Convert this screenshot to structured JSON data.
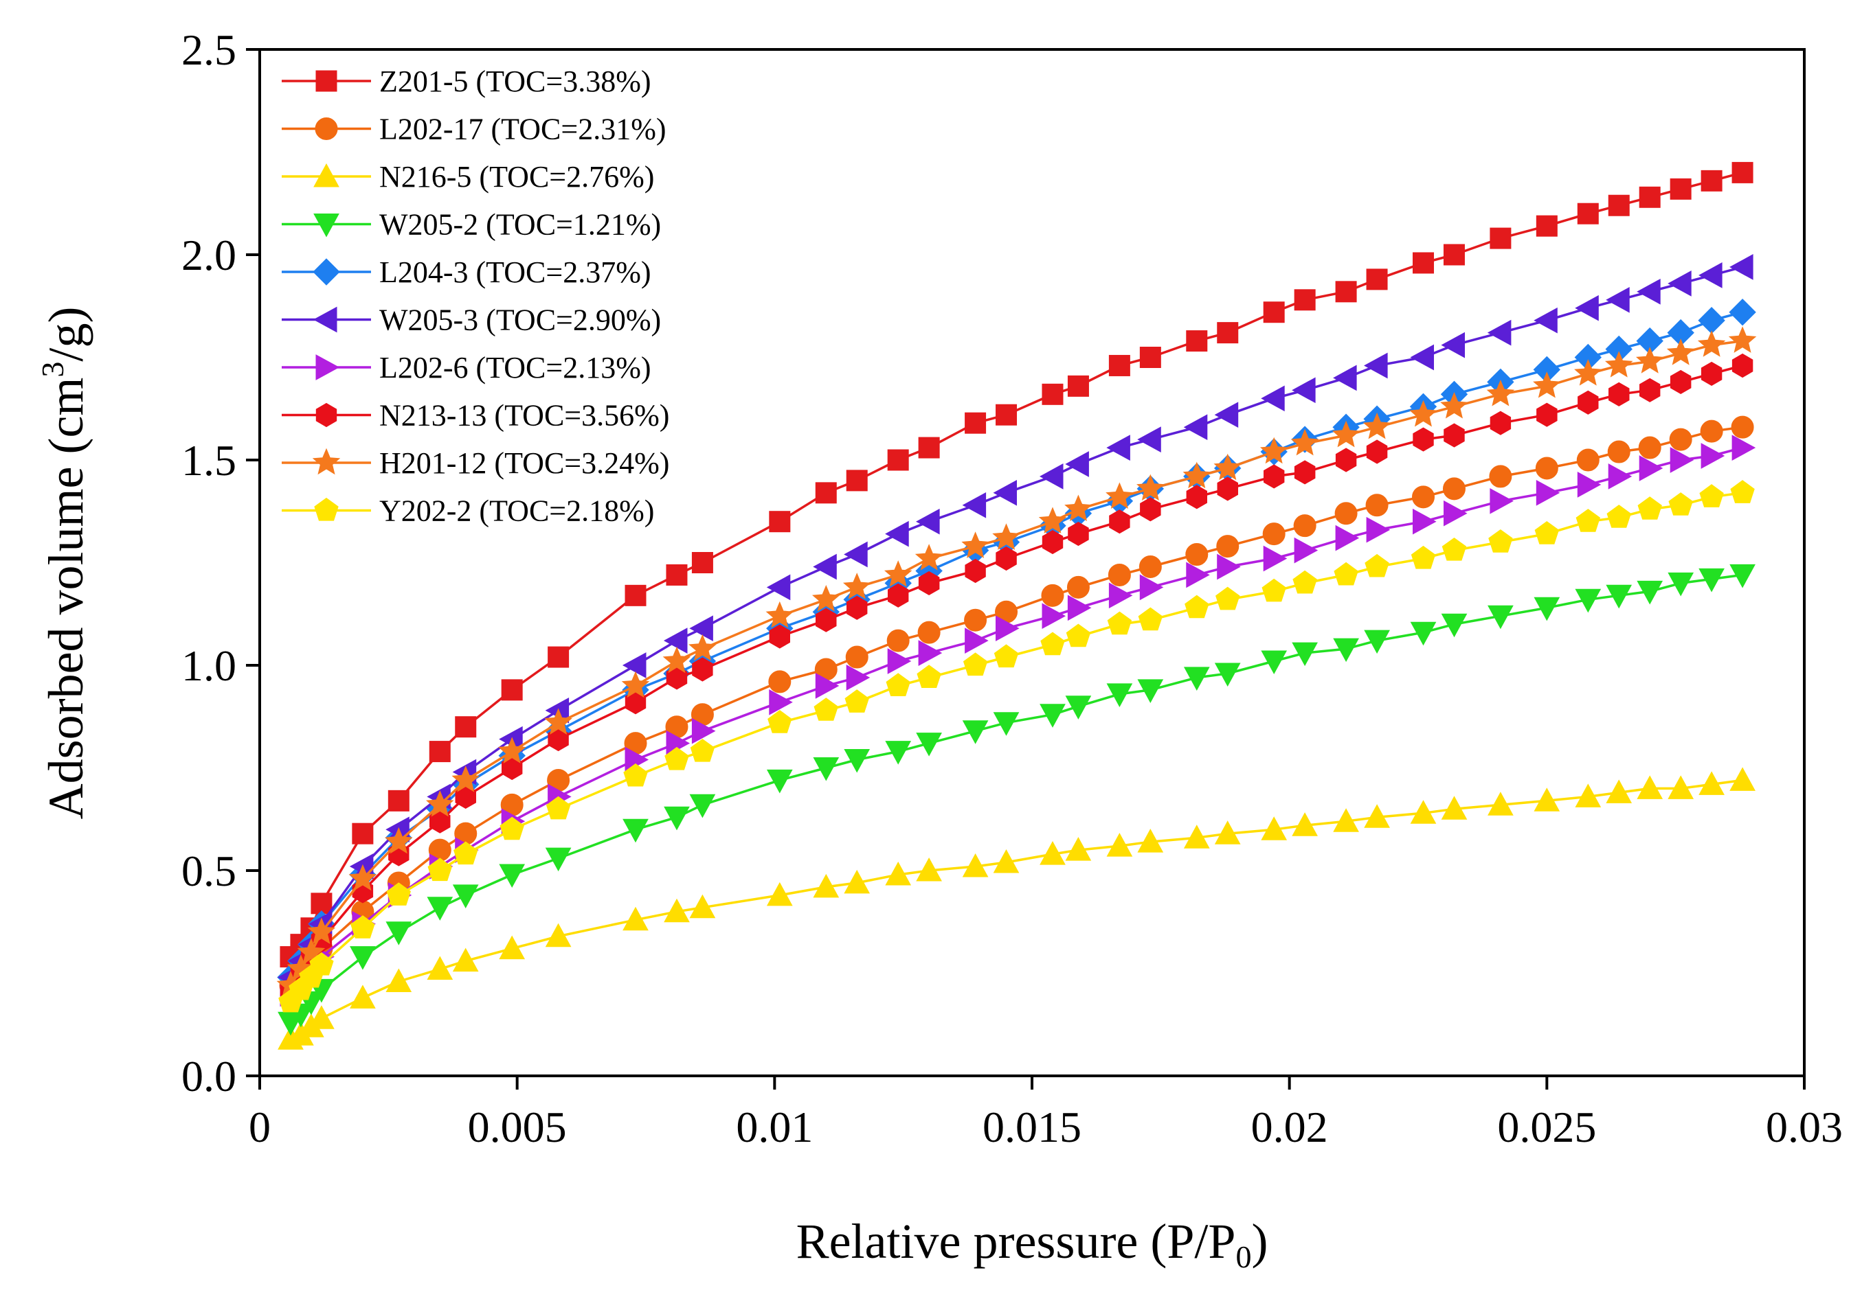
{
  "chart_data": {
    "type": "line",
    "title": "",
    "xlabel": {
      "main": "Relative pressure (P/P",
      "sub": "0",
      "end": ")"
    },
    "ylabel": {
      "main": "Adsorbed volume (cm",
      "sup": "3",
      "end": "/g)"
    },
    "xlim": [
      0,
      0.03
    ],
    "ylim": [
      0,
      2.5
    ],
    "xticks": [
      "0",
      "0.005",
      "0.01",
      "0.015",
      "0.02",
      "0.025",
      "0.03"
    ],
    "yticks": [
      "0.0",
      "0.5",
      "1.0",
      "1.5",
      "2.0",
      "2.5"
    ],
    "legend_position": "top-left",
    "x": [
      0.0006,
      0.0008,
      0.001,
      0.0012,
      0.002,
      0.0027,
      0.0035,
      0.004,
      0.0049,
      0.0058,
      0.0073,
      0.0081,
      0.0086,
      0.0101,
      0.011,
      0.0116,
      0.0124,
      0.013,
      0.0139,
      0.0145,
      0.0154,
      0.0159,
      0.0167,
      0.0173,
      0.0182,
      0.0188,
      0.0197,
      0.0203,
      0.0211,
      0.0217,
      0.0226,
      0.0232,
      0.0241,
      0.025,
      0.0258,
      0.0264,
      0.027,
      0.0276,
      0.0282,
      0.0288
    ],
    "series": [
      {
        "name": "Z201-5 (TOC=3.38%)",
        "color": "#e31a1c",
        "marker": "square",
        "values": [
          0.29,
          0.32,
          0.36,
          0.42,
          0.59,
          0.67,
          0.79,
          0.85,
          0.94,
          1.02,
          1.17,
          1.22,
          1.25,
          1.35,
          1.42,
          1.45,
          1.5,
          1.53,
          1.59,
          1.61,
          1.66,
          1.68,
          1.73,
          1.75,
          1.79,
          1.81,
          1.86,
          1.89,
          1.91,
          1.94,
          1.98,
          2.0,
          2.04,
          2.07,
          2.1,
          2.12,
          2.14,
          2.16,
          2.18,
          2.2
        ]
      },
      {
        "name": "L202-17 (TOC=2.31%)",
        "color": "#f26a10",
        "marker": "circle",
        "values": [
          0.22,
          0.25,
          0.28,
          0.31,
          0.4,
          0.47,
          0.55,
          0.59,
          0.66,
          0.72,
          0.81,
          0.85,
          0.88,
          0.96,
          0.99,
          1.02,
          1.06,
          1.08,
          1.11,
          1.13,
          1.17,
          1.19,
          1.22,
          1.24,
          1.27,
          1.29,
          1.32,
          1.34,
          1.37,
          1.39,
          1.41,
          1.43,
          1.46,
          1.48,
          1.5,
          1.52,
          1.53,
          1.55,
          1.57,
          1.58
        ]
      },
      {
        "name": "N216-5 (TOC=2.76%)",
        "color": "#ffdd00",
        "marker": "triangle-up",
        "values": [
          0.09,
          0.1,
          0.12,
          0.14,
          0.19,
          0.23,
          0.26,
          0.28,
          0.31,
          0.34,
          0.38,
          0.4,
          0.41,
          0.44,
          0.46,
          0.47,
          0.49,
          0.5,
          0.51,
          0.52,
          0.54,
          0.55,
          0.56,
          0.57,
          0.58,
          0.59,
          0.6,
          0.61,
          0.62,
          0.63,
          0.64,
          0.65,
          0.66,
          0.67,
          0.68,
          0.69,
          0.7,
          0.7,
          0.71,
          0.72
        ]
      },
      {
        "name": "W205-2 (TOC=1.21%)",
        "color": "#22e022",
        "marker": "triangle-down",
        "values": [
          0.13,
          0.15,
          0.18,
          0.21,
          0.29,
          0.35,
          0.41,
          0.44,
          0.49,
          0.53,
          0.6,
          0.63,
          0.66,
          0.72,
          0.75,
          0.77,
          0.79,
          0.81,
          0.84,
          0.86,
          0.88,
          0.9,
          0.93,
          0.94,
          0.97,
          0.98,
          1.01,
          1.03,
          1.04,
          1.06,
          1.08,
          1.1,
          1.12,
          1.14,
          1.16,
          1.17,
          1.18,
          1.2,
          1.21,
          1.22
        ]
      },
      {
        "name": "L204-3 (TOC=2.37%)",
        "color": "#1e7ff0",
        "marker": "diamond",
        "values": [
          0.24,
          0.28,
          0.32,
          0.37,
          0.49,
          0.58,
          0.65,
          0.71,
          0.78,
          0.84,
          0.94,
          0.98,
          1.01,
          1.09,
          1.13,
          1.16,
          1.2,
          1.23,
          1.28,
          1.3,
          1.34,
          1.37,
          1.4,
          1.43,
          1.46,
          1.48,
          1.52,
          1.55,
          1.58,
          1.6,
          1.63,
          1.66,
          1.69,
          1.72,
          1.75,
          1.77,
          1.79,
          1.81,
          1.84,
          1.86
        ]
      },
      {
        "name": "W205-3 (TOC=2.90%)",
        "color": "#5b1fd6",
        "marker": "triangle-left",
        "values": [
          0.24,
          0.28,
          0.32,
          0.37,
          0.51,
          0.6,
          0.68,
          0.74,
          0.82,
          0.89,
          1.0,
          1.06,
          1.09,
          1.19,
          1.24,
          1.27,
          1.32,
          1.35,
          1.39,
          1.42,
          1.46,
          1.49,
          1.53,
          1.55,
          1.58,
          1.61,
          1.65,
          1.67,
          1.7,
          1.73,
          1.75,
          1.78,
          1.81,
          1.84,
          1.87,
          1.89,
          1.91,
          1.93,
          1.95,
          1.97
        ]
      },
      {
        "name": "L202-6 (TOC=2.13%)",
        "color": "#b21fe0",
        "marker": "triangle-right",
        "values": [
          0.2,
          0.23,
          0.26,
          0.29,
          0.37,
          0.44,
          0.51,
          0.55,
          0.62,
          0.68,
          0.77,
          0.81,
          0.84,
          0.91,
          0.95,
          0.97,
          1.01,
          1.03,
          1.06,
          1.09,
          1.12,
          1.14,
          1.17,
          1.19,
          1.22,
          1.24,
          1.26,
          1.28,
          1.31,
          1.33,
          1.35,
          1.37,
          1.4,
          1.42,
          1.44,
          1.46,
          1.48,
          1.5,
          1.51,
          1.53
        ]
      },
      {
        "name": "N213-13 (TOC=3.56%)",
        "color": "#e8101a",
        "marker": "hexagon",
        "values": [
          0.21,
          0.25,
          0.29,
          0.33,
          0.45,
          0.54,
          0.62,
          0.68,
          0.75,
          0.82,
          0.91,
          0.97,
          0.99,
          1.07,
          1.11,
          1.14,
          1.17,
          1.2,
          1.23,
          1.26,
          1.3,
          1.32,
          1.35,
          1.38,
          1.41,
          1.43,
          1.46,
          1.47,
          1.5,
          1.52,
          1.55,
          1.56,
          1.59,
          1.61,
          1.64,
          1.66,
          1.67,
          1.69,
          1.71,
          1.73
        ]
      },
      {
        "name": "H201-12 (TOC=3.24%)",
        "color": "#f5791d",
        "marker": "star",
        "values": [
          0.22,
          0.26,
          0.3,
          0.35,
          0.48,
          0.57,
          0.66,
          0.72,
          0.79,
          0.86,
          0.95,
          1.01,
          1.04,
          1.12,
          1.16,
          1.19,
          1.22,
          1.26,
          1.29,
          1.31,
          1.35,
          1.38,
          1.41,
          1.43,
          1.46,
          1.48,
          1.52,
          1.54,
          1.56,
          1.58,
          1.61,
          1.63,
          1.66,
          1.68,
          1.71,
          1.73,
          1.74,
          1.76,
          1.78,
          1.79
        ]
      },
      {
        "name": "Y202-2 (TOC=2.18%)",
        "color": "#ffe500",
        "marker": "pentagon",
        "values": [
          0.18,
          0.21,
          0.24,
          0.27,
          0.36,
          0.44,
          0.5,
          0.54,
          0.6,
          0.65,
          0.73,
          0.77,
          0.79,
          0.86,
          0.89,
          0.91,
          0.95,
          0.97,
          1.0,
          1.02,
          1.05,
          1.07,
          1.1,
          1.11,
          1.14,
          1.16,
          1.18,
          1.2,
          1.22,
          1.24,
          1.26,
          1.28,
          1.3,
          1.32,
          1.35,
          1.36,
          1.38,
          1.39,
          1.41,
          1.42
        ]
      }
    ]
  }
}
